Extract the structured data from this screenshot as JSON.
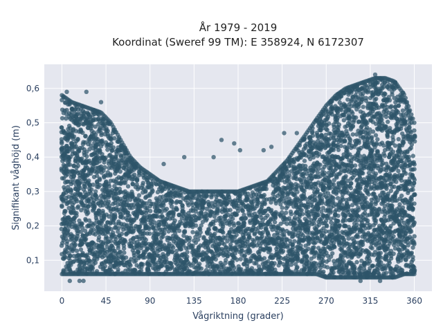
{
  "chart_data": {
    "type": "scatter",
    "title_line1": "År 1979 - 2019",
    "title_line2": "Koordinat (Sweref 99 TM): E 358924, N 6172307",
    "xlabel": "Vågriktning (grader)",
    "ylabel": "Signifikant våghöjd (m)",
    "xlim": [
      -18,
      378
    ],
    "ylim": [
      0.01,
      0.67
    ],
    "xticks": [
      0,
      45,
      90,
      135,
      180,
      225,
      270,
      315,
      360
    ],
    "xtick_labels": [
      "0",
      "45",
      "90",
      "135",
      "180",
      "225",
      "270",
      "315",
      "360"
    ],
    "yticks": [
      0.1,
      0.2,
      0.3,
      0.4,
      0.5,
      0.6
    ],
    "ytick_labels": [
      "0,1",
      "0,2",
      "0,3",
      "0,4",
      "0,5",
      "0,6"
    ],
    "grid": true,
    "marker_color": "#2e5469",
    "background": "#e5e7ef",
    "envelope": {
      "x": [
        0,
        10,
        20,
        30,
        40,
        50,
        60,
        70,
        80,
        90,
        100,
        110,
        120,
        130,
        140,
        150,
        160,
        170,
        180,
        190,
        200,
        210,
        220,
        230,
        240,
        250,
        260,
        270,
        280,
        290,
        300,
        310,
        320,
        330,
        340,
        350,
        360
      ],
      "ymax": [
        0.58,
        0.56,
        0.55,
        0.54,
        0.53,
        0.5,
        0.45,
        0.4,
        0.37,
        0.35,
        0.33,
        0.32,
        0.31,
        0.3,
        0.3,
        0.3,
        0.3,
        0.3,
        0.3,
        0.31,
        0.32,
        0.33,
        0.36,
        0.39,
        0.43,
        0.47,
        0.51,
        0.55,
        0.58,
        0.6,
        0.61,
        0.62,
        0.63,
        0.63,
        0.62,
        0.58,
        0.5
      ],
      "ymin": [
        0.06,
        0.06,
        0.06,
        0.06,
        0.06,
        0.06,
        0.06,
        0.06,
        0.06,
        0.06,
        0.06,
        0.06,
        0.06,
        0.06,
        0.06,
        0.06,
        0.06,
        0.06,
        0.06,
        0.06,
        0.06,
        0.06,
        0.06,
        0.06,
        0.06,
        0.06,
        0.06,
        0.05,
        0.05,
        0.05,
        0.05,
        0.05,
        0.05,
        0.05,
        0.05,
        0.06,
        0.06
      ]
    },
    "outliers": [
      {
        "x": 163,
        "y": 0.45
      },
      {
        "x": 176,
        "y": 0.44
      },
      {
        "x": 182,
        "y": 0.42
      },
      {
        "x": 206,
        "y": 0.42
      },
      {
        "x": 214,
        "y": 0.43
      },
      {
        "x": 227,
        "y": 0.47
      },
      {
        "x": 240,
        "y": 0.47
      },
      {
        "x": 125,
        "y": 0.4
      },
      {
        "x": 104,
        "y": 0.38
      },
      {
        "x": 155,
        "y": 0.4
      },
      {
        "x": 8,
        "y": 0.04
      },
      {
        "x": 18,
        "y": 0.04
      },
      {
        "x": 22,
        "y": 0.04
      },
      {
        "x": 305,
        "y": 0.04
      },
      {
        "x": 325,
        "y": 0.04
      },
      {
        "x": 5,
        "y": 0.59
      },
      {
        "x": 25,
        "y": 0.59
      },
      {
        "x": 40,
        "y": 0.56
      },
      {
        "x": 320,
        "y": 0.64
      }
    ]
  }
}
